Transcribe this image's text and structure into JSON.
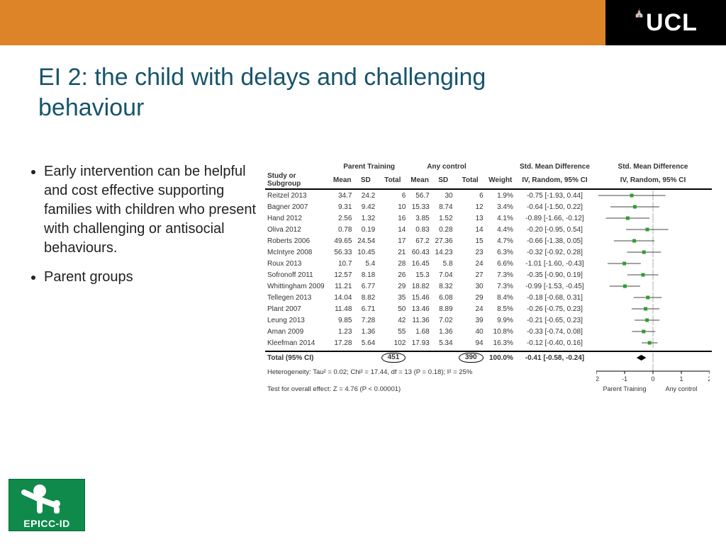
{
  "header": {
    "brand": "UCL"
  },
  "title": "EI 2: the child with delays and challenging behaviour",
  "bullets": [
    "Early intervention can be helpful and cost effective supporting families with children who present with challenging or antisocial behaviours.",
    "Parent groups"
  ],
  "logo_text": "EPICC-ID",
  "forest": {
    "group_labels": {
      "treatment": "Parent Training",
      "control": "Any control"
    },
    "effect_header": "Std. Mean Difference",
    "effect_model": "IV, Random, 95% CI",
    "columns": [
      "Study or Subgroup",
      "Mean",
      "SD",
      "Total",
      "Mean",
      "SD",
      "Total",
      "Weight",
      "IV, Random, 95% CI"
    ],
    "xlim": [
      -2,
      2
    ],
    "xticks": [
      -2,
      -1,
      0,
      1,
      2
    ],
    "axis_left_label": "Parent Training",
    "axis_right_label": "Any control",
    "marker_color": "#2e9e2e",
    "line_color": "#444444",
    "diamond_color": "#000000",
    "rows": [
      {
        "study": "Reitzel 2013",
        "m1": 34.7,
        "sd1": 24.2,
        "n1": 6,
        "m2": 56.7,
        "sd2": 30,
        "n2": 6,
        "w": "1.9%",
        "es": -0.75,
        "lo": -1.93,
        "hi": 0.44
      },
      {
        "study": "Bagner 2007",
        "m1": 9.31,
        "sd1": 9.42,
        "n1": 10,
        "m2": 15.33,
        "sd2": 8.74,
        "n2": 12,
        "w": "3.4%",
        "es": -0.64,
        "lo": -1.5,
        "hi": 0.22
      },
      {
        "study": "Hand 2012",
        "m1": 2.56,
        "sd1": 1.32,
        "n1": 16,
        "m2": 3.85,
        "sd2": 1.52,
        "n2": 13,
        "w": "4.1%",
        "es": -0.89,
        "lo": -1.66,
        "hi": -0.12
      },
      {
        "study": "Oliva 2012",
        "m1": 0.78,
        "sd1": 0.19,
        "n1": 14,
        "m2": 0.83,
        "sd2": 0.28,
        "n2": 14,
        "w": "4.4%",
        "es": -0.2,
        "lo": -0.95,
        "hi": 0.54
      },
      {
        "study": "Roberts 2006",
        "m1": 49.65,
        "sd1": 24.54,
        "n1": 17,
        "m2": 67.2,
        "sd2": 27.36,
        "n2": 15,
        "w": "4.7%",
        "es": -0.66,
        "lo": -1.38,
        "hi": 0.05
      },
      {
        "study": "McIntyre 2008",
        "m1": 56.33,
        "sd1": 10.45,
        "n1": 21,
        "m2": 60.43,
        "sd2": 14.23,
        "n2": 23,
        "w": "6.3%",
        "es": -0.32,
        "lo": -0.92,
        "hi": 0.28
      },
      {
        "study": "Roux 2013",
        "m1": 10.7,
        "sd1": 5.4,
        "n1": 28,
        "m2": 16.45,
        "sd2": 5.8,
        "n2": 24,
        "w": "6.6%",
        "es": -1.01,
        "lo": -1.6,
        "hi": -0.43
      },
      {
        "study": "Sofronoff 2011",
        "m1": 12.57,
        "sd1": 8.18,
        "n1": 26,
        "m2": 15.3,
        "sd2": 7.04,
        "n2": 27,
        "w": "7.3%",
        "es": -0.35,
        "lo": -0.9,
        "hi": 0.19
      },
      {
        "study": "Whittingham 2009",
        "m1": 11.21,
        "sd1": 6.77,
        "n1": 29,
        "m2": 18.82,
        "sd2": 8.32,
        "n2": 30,
        "w": "7.3%",
        "es": -0.99,
        "lo": -1.53,
        "hi": -0.45
      },
      {
        "study": "Tellegen 2013",
        "m1": 14.04,
        "sd1": 8.82,
        "n1": 35,
        "m2": 15.46,
        "sd2": 6.08,
        "n2": 29,
        "w": "8.4%",
        "es": -0.18,
        "lo": -0.68,
        "hi": 0.31
      },
      {
        "study": "Plant 2007",
        "m1": 11.48,
        "sd1": 6.71,
        "n1": 50,
        "m2": 13.46,
        "sd2": 8.89,
        "n2": 24,
        "w": "8.5%",
        "es": -0.26,
        "lo": -0.75,
        "hi": 0.23
      },
      {
        "study": "Leung 2013",
        "m1": 9.85,
        "sd1": 7.28,
        "n1": 42,
        "m2": 11.36,
        "sd2": 7.02,
        "n2": 39,
        "w": "9.9%",
        "es": -0.21,
        "lo": -0.65,
        "hi": 0.23
      },
      {
        "study": "Aman 2009",
        "m1": 1.23,
        "sd1": 1.36,
        "n1": 55,
        "m2": 1.68,
        "sd2": 1.36,
        "n2": 40,
        "w": "10.8%",
        "es": -0.33,
        "lo": -0.74,
        "hi": 0.08
      },
      {
        "study": "Kleefman 2014",
        "m1": 17.28,
        "sd1": 5.64,
        "n1": 102,
        "m2": 17.93,
        "sd2": 5.34,
        "n2": 94,
        "w": "16.3%",
        "es": -0.12,
        "lo": -0.4,
        "hi": 0.16
      }
    ],
    "total": {
      "label": "Total (95% CI)",
      "n1": 451,
      "n2": 390,
      "w": "100.0%",
      "es": -0.41,
      "lo": -0.58,
      "hi": -0.24
    },
    "heterogeneity": "Heterogeneity: Tau² = 0.02; Chi² = 17.44, df = 13 (P = 0.18); I² = 25%",
    "overall_test": "Test for overall effect: Z = 4.76 (P < 0.00001)"
  },
  "colors": {
    "topbar": "#dd8428",
    "title": "#17546b",
    "logo_bg": "#0f8a4b"
  }
}
